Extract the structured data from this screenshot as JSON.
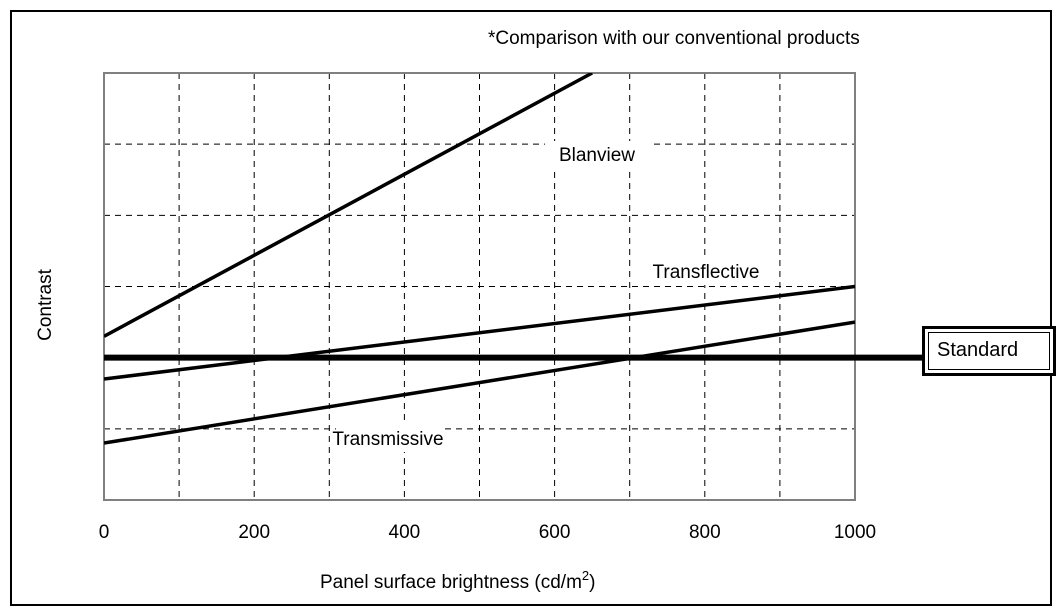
{
  "chart_data": {
    "type": "line",
    "title": "",
    "note": "*Comparison with our conventional products",
    "xlabel": "Panel surface brightness (cd/m",
    "xlabel_sup": "2",
    "xlabel_suffix": ")",
    "ylabel": "Contrast",
    "xlim": [
      0,
      1000
    ],
    "ylim": [
      0,
      6
    ],
    "x_ticks": [
      0,
      200,
      400,
      600,
      800,
      1000
    ],
    "x_grid": [
      100,
      200,
      300,
      400,
      500,
      600,
      700,
      800,
      900
    ],
    "y_grid": [
      1,
      2,
      3,
      4,
      5
    ],
    "grid": true,
    "series": [
      {
        "name": "Blanview",
        "x": [
          0,
          650
        ],
        "y": [
          2.3,
          6.0
        ],
        "color": "#000000"
      },
      {
        "name": "Transflective",
        "x": [
          0,
          1000
        ],
        "y": [
          1.7,
          3.0
        ],
        "color": "#000000"
      },
      {
        "name": "Transmissive",
        "x": [
          0,
          1000
        ],
        "y": [
          0.8,
          2.5
        ],
        "color": "#000000"
      }
    ],
    "reference_line": {
      "name": "Standard",
      "y": 2.0
    }
  }
}
